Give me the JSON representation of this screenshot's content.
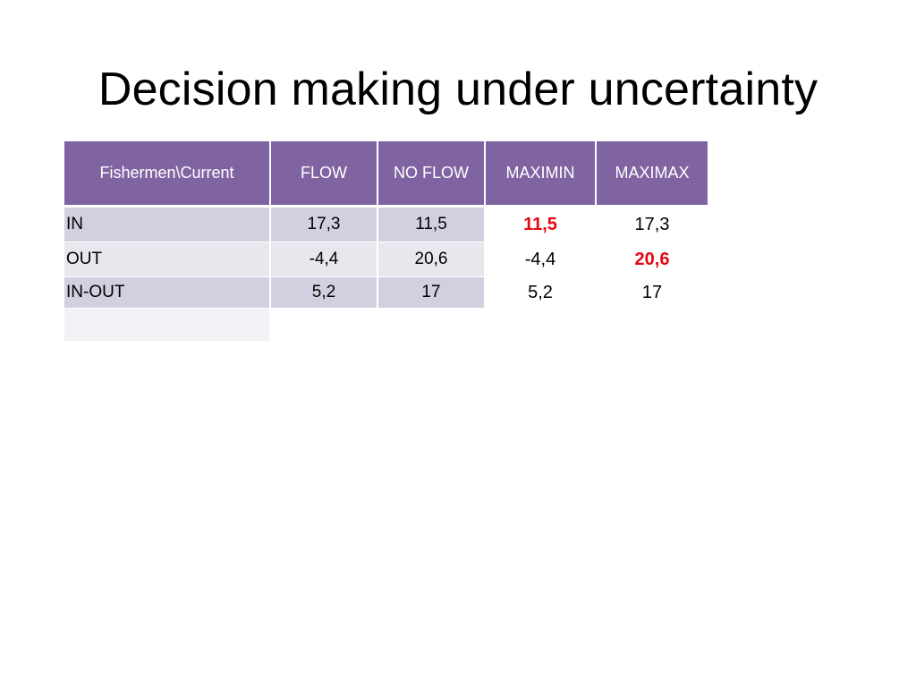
{
  "slide": {
    "title": "Decision making under uncertainty"
  },
  "table": {
    "headers": [
      "Fishermen\\Current",
      "FLOW",
      "NO FLOW",
      "MAXIMIN",
      "MAXIMAX"
    ],
    "rows": [
      {
        "label": "IN",
        "flow": "17,3",
        "no_flow": "11,5",
        "maximin": "11,5",
        "maximax": "17,3"
      },
      {
        "label": "OUT",
        "flow": "-4,4",
        "no_flow": "20,6",
        "maximin": "-4,4",
        "maximax": "20,6"
      },
      {
        "label": "IN-OUT",
        "flow": "5,2",
        "no_flow": "17",
        "maximin": "5,2",
        "maximax": "17"
      }
    ],
    "colors": {
      "header_bg": "#8064a2",
      "row_shade_dark": "#d3cfe0",
      "row_shade_light": "#e9e7ee",
      "highlight": "#e30613"
    }
  }
}
